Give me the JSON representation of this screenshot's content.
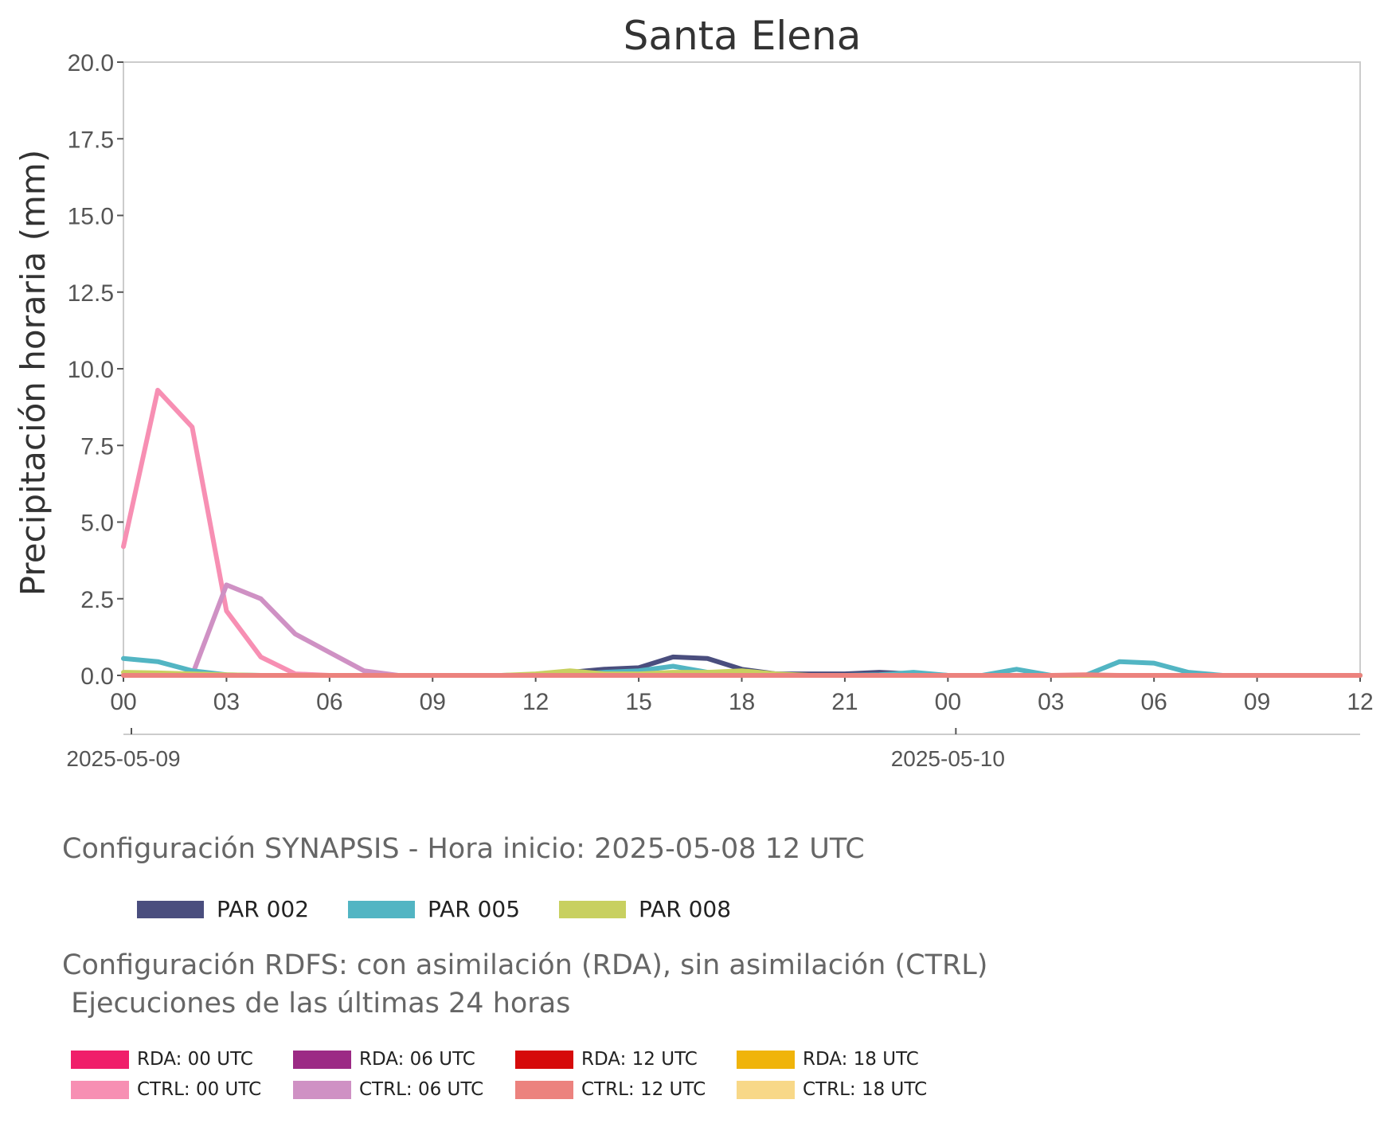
{
  "chart_data": {
    "type": "line",
    "title": "Santa Elena",
    "ylabel": "Precipitación horaria (mm)",
    "xlabel": "",
    "ylim": [
      0,
      20
    ],
    "yticks": [
      "0.0",
      "2.5",
      "5.0",
      "7.5",
      "10.0",
      "12.5",
      "15.0",
      "17.5",
      "20.0"
    ],
    "xlim": [
      0,
      36
    ],
    "x_start": "2025-05-09 00",
    "xtick_labels": [
      "00",
      "03",
      "06",
      "09",
      "12",
      "15",
      "18",
      "21",
      "00",
      "03",
      "06",
      "09",
      "12"
    ],
    "date_labels": [
      "2025-05-09",
      "2025-05-10"
    ],
    "grid": false,
    "series": [
      {
        "name": "CTRL: 00 UTC",
        "color": "#f78fb3",
        "x": [
          0,
          1,
          2,
          3,
          4,
          5,
          6,
          7,
          8,
          9,
          10,
          11,
          12,
          13,
          14,
          15,
          16,
          17,
          18,
          19,
          20,
          21,
          22,
          23,
          24,
          25,
          26,
          27,
          28,
          29,
          30,
          31,
          32,
          33,
          34,
          35,
          36
        ],
        "values": [
          4.2,
          9.3,
          8.1,
          2.1,
          0.6,
          0.05,
          0,
          0,
          0,
          0,
          0,
          0,
          0,
          0,
          0,
          0,
          0,
          0,
          0,
          0,
          0,
          0,
          0,
          0,
          0,
          0,
          0,
          0,
          0,
          0,
          0,
          0,
          0,
          0,
          0,
          0,
          0
        ]
      },
      {
        "name": "CTRL: 06 UTC",
        "color": "#cf91c4",
        "x": [
          2,
          3,
          4,
          5,
          6,
          7,
          8,
          9,
          10,
          11,
          12,
          13,
          14,
          15,
          16,
          17,
          18,
          19,
          20,
          21,
          22,
          23,
          24,
          25,
          26,
          27,
          28,
          29,
          30,
          31,
          32,
          33,
          34,
          35,
          36
        ],
        "values": [
          0,
          2.95,
          2.5,
          1.35,
          0.75,
          0.15,
          0,
          0,
          0,
          0,
          0,
          0,
          0,
          0,
          0,
          0,
          0,
          0,
          0,
          0,
          0,
          0,
          0,
          0,
          0,
          0,
          0,
          0,
          0,
          0,
          0,
          0,
          0,
          0,
          0
        ]
      },
      {
        "name": "PAR 002",
        "color": "#4a4e7e",
        "x": [
          0,
          1,
          2,
          3,
          4,
          5,
          6,
          7,
          8,
          9,
          10,
          11,
          12,
          13,
          14,
          15,
          16,
          17,
          18,
          19,
          20,
          21,
          22,
          23,
          24,
          25,
          26,
          27,
          28,
          29,
          30,
          31,
          32,
          33,
          34,
          35,
          36
        ],
        "values": [
          0,
          0,
          0,
          0,
          0,
          0,
          0,
          0,
          0,
          0,
          0,
          0,
          0.02,
          0.1,
          0.2,
          0.25,
          0.6,
          0.55,
          0.2,
          0.05,
          0.05,
          0.05,
          0.1,
          0.05,
          0,
          0,
          0,
          0,
          0,
          0,
          0,
          0,
          0,
          0,
          0,
          0,
          0
        ]
      },
      {
        "name": "PAR 005",
        "color": "#52b5c3",
        "x": [
          0,
          1,
          2,
          3,
          4,
          5,
          6,
          7,
          8,
          9,
          10,
          11,
          12,
          13,
          14,
          15,
          16,
          17,
          18,
          19,
          20,
          21,
          22,
          23,
          24,
          25,
          26,
          27,
          28,
          29,
          30,
          31,
          32,
          33,
          34,
          35,
          36
        ],
        "values": [
          0.55,
          0.45,
          0.15,
          0.02,
          0,
          0,
          0,
          0,
          0,
          0,
          0,
          0,
          0,
          0,
          0.1,
          0.15,
          0.3,
          0.1,
          0.05,
          0,
          0,
          0,
          0.02,
          0.1,
          0,
          0,
          0.2,
          0,
          0,
          0.45,
          0.4,
          0.1,
          0,
          0,
          0,
          0,
          0
        ]
      },
      {
        "name": "PAR 008",
        "color": "#c8d060",
        "x": [
          0,
          1,
          2,
          3,
          4,
          5,
          6,
          7,
          8,
          9,
          10,
          11,
          12,
          13,
          14,
          15,
          16,
          17,
          18,
          19,
          20,
          21,
          22,
          23,
          24,
          25,
          26,
          27,
          28,
          29,
          30,
          31,
          32,
          33,
          34,
          35,
          36
        ],
        "values": [
          0.1,
          0.08,
          0.05,
          0.02,
          0,
          0,
          0,
          0,
          0,
          0,
          0,
          0,
          0.05,
          0.15,
          0.05,
          0.05,
          0.1,
          0.1,
          0.15,
          0.05,
          0,
          0,
          0,
          0,
          0,
          0,
          0,
          0,
          0,
          0,
          0,
          0,
          0,
          0,
          0,
          0,
          0
        ]
      },
      {
        "name": "CTRL: 12 UTC",
        "color": "#ec827e",
        "x": [
          0,
          1,
          2,
          3,
          4,
          5,
          6,
          7,
          8,
          9,
          10,
          11,
          12,
          13,
          14,
          15,
          16,
          17,
          18,
          19,
          20,
          21,
          22,
          23,
          24,
          25,
          26,
          27,
          28,
          29,
          30,
          31,
          32,
          33,
          34,
          35,
          36
        ],
        "values": [
          0,
          0,
          0,
          0,
          0,
          0,
          0,
          0,
          0,
          0,
          0,
          0,
          0,
          0,
          0,
          0,
          0,
          0,
          0,
          0,
          0,
          0,
          0,
          0,
          0,
          0,
          0,
          0,
          0.02,
          0,
          0,
          0,
          0,
          0,
          0,
          0,
          0
        ]
      }
    ]
  },
  "legend_synapsis": {
    "title": "Configuración SYNAPSIS - Hora inicio: 2025-05-08 12 UTC",
    "items": [
      {
        "label": "PAR 002",
        "color": "#4a4e7e"
      },
      {
        "label": "PAR 005",
        "color": "#52b5c3"
      },
      {
        "label": "PAR 008",
        "color": "#c8d060"
      }
    ]
  },
  "legend_rdfs": {
    "title": "Configuración RDFS: con asimilación (RDA), sin asimilación (CTRL)\n Ejecuciones de las últimas 24 horas",
    "items": [
      {
        "label": "RDA: 00 UTC",
        "color": "#f01e6a"
      },
      {
        "label": "RDA: 06 UTC",
        "color": "#9c2a85"
      },
      {
        "label": "RDA: 12 UTC",
        "color": "#d60a0a"
      },
      {
        "label": "RDA: 18 UTC",
        "color": "#f0b40a"
      },
      {
        "label": "CTRL: 00 UTC",
        "color": "#f78fb3"
      },
      {
        "label": "CTRL: 06 UTC",
        "color": "#cf91c4"
      },
      {
        "label": "CTRL: 12 UTC",
        "color": "#ec827e"
      },
      {
        "label": "CTRL: 18 UTC",
        "color": "#f8d888"
      }
    ]
  }
}
